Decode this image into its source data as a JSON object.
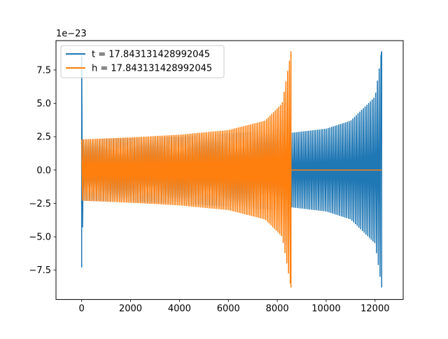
{
  "chart_data": {
    "type": "line",
    "title": "",
    "xlabel": "",
    "ylabel": "",
    "y_offset_text": "1e−23",
    "xlim": [
      -1050,
      13150
    ],
    "ylim": [
      -9.7,
      9.7
    ],
    "x_ticks": [
      0,
      2000,
      4000,
      6000,
      8000,
      10000,
      12000
    ],
    "x_tick_labels": [
      "0",
      "2000",
      "4000",
      "6000",
      "8000",
      "10000",
      "12000"
    ],
    "y_ticks": [
      -7.5,
      -5.0,
      -2.5,
      0.0,
      2.5,
      5.0,
      7.5
    ],
    "y_tick_labels": [
      "−7.5",
      "−5.0",
      "−2.5",
      "0.0",
      "2.5",
      "5.0",
      "7.5"
    ],
    "grid": false,
    "legend_position": "upper-left",
    "series": [
      {
        "name": "t = 17.843131428992045",
        "color": "#1f77b4",
        "description_points": [
          {
            "x": 0,
            "y_max": 8.5,
            "y_min": -7.3
          },
          {
            "x": 60,
            "y_max": 2.3,
            "y_min": -2.3
          },
          {
            "x": 4000,
            "y_max": 2.5,
            "y_min": -2.5
          },
          {
            "x": 8000,
            "y_max": 3.0,
            "y_min": -3.0
          },
          {
            "x": 8600,
            "y_max": 2.8,
            "y_min": -2.8
          },
          {
            "x": 10000,
            "y_max": 3.1,
            "y_min": -3.1
          },
          {
            "x": 11000,
            "y_max": 3.7,
            "y_min": -3.7
          },
          {
            "x": 12000,
            "y_max": 5.5,
            "y_min": -5.5
          },
          {
            "x": 12270,
            "y_max": 8.9,
            "y_min": -8.8
          }
        ]
      },
      {
        "name": "h = 17.843131428992045",
        "color": "#ff7f0e",
        "description_points": [
          {
            "x": 0,
            "y_max": 2.3,
            "y_min": -2.3
          },
          {
            "x": 2000,
            "y_max": 2.45,
            "y_min": -2.45
          },
          {
            "x": 4000,
            "y_max": 2.65,
            "y_min": -2.65
          },
          {
            "x": 6000,
            "y_max": 3.0,
            "y_min": -3.0
          },
          {
            "x": 7500,
            "y_max": 3.7,
            "y_min": -3.7
          },
          {
            "x": 8200,
            "y_max": 5.0,
            "y_min": -5.0
          },
          {
            "x": 8560,
            "y_max": 8.9,
            "y_min": -8.8
          },
          {
            "x": 8600,
            "y_max": 0.0,
            "y_min": 0.0
          },
          {
            "x": 12270,
            "y_max": 0.0,
            "y_min": 0.0
          }
        ]
      }
    ]
  }
}
